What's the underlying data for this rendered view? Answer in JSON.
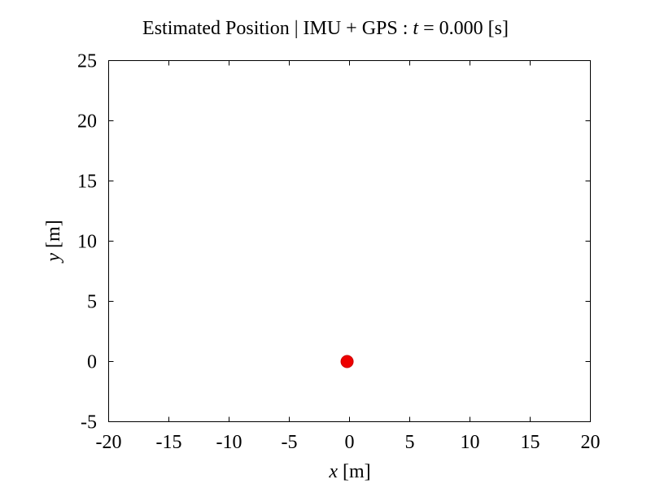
{
  "chart_data": {
    "type": "scatter",
    "title": {
      "prefix": "Estimated Position | IMU + GPS : ",
      "time_symbol": "t",
      "time_suffix": " = 0.000 [s]"
    },
    "xlabel": {
      "symbol": "x",
      "unit": " [m]"
    },
    "ylabel": {
      "symbol": "y",
      "unit": " [m]"
    },
    "xlim": [
      -20,
      20
    ],
    "ylim": [
      -5,
      25
    ],
    "xticks": [
      -20,
      -15,
      -10,
      -5,
      0,
      5,
      10,
      15,
      20
    ],
    "yticks": [
      -5,
      0,
      5,
      10,
      15,
      20,
      25
    ],
    "grid": false,
    "points": [
      {
        "x": -0.2,
        "y": 0.0,
        "color": "#ee0000"
      }
    ]
  }
}
